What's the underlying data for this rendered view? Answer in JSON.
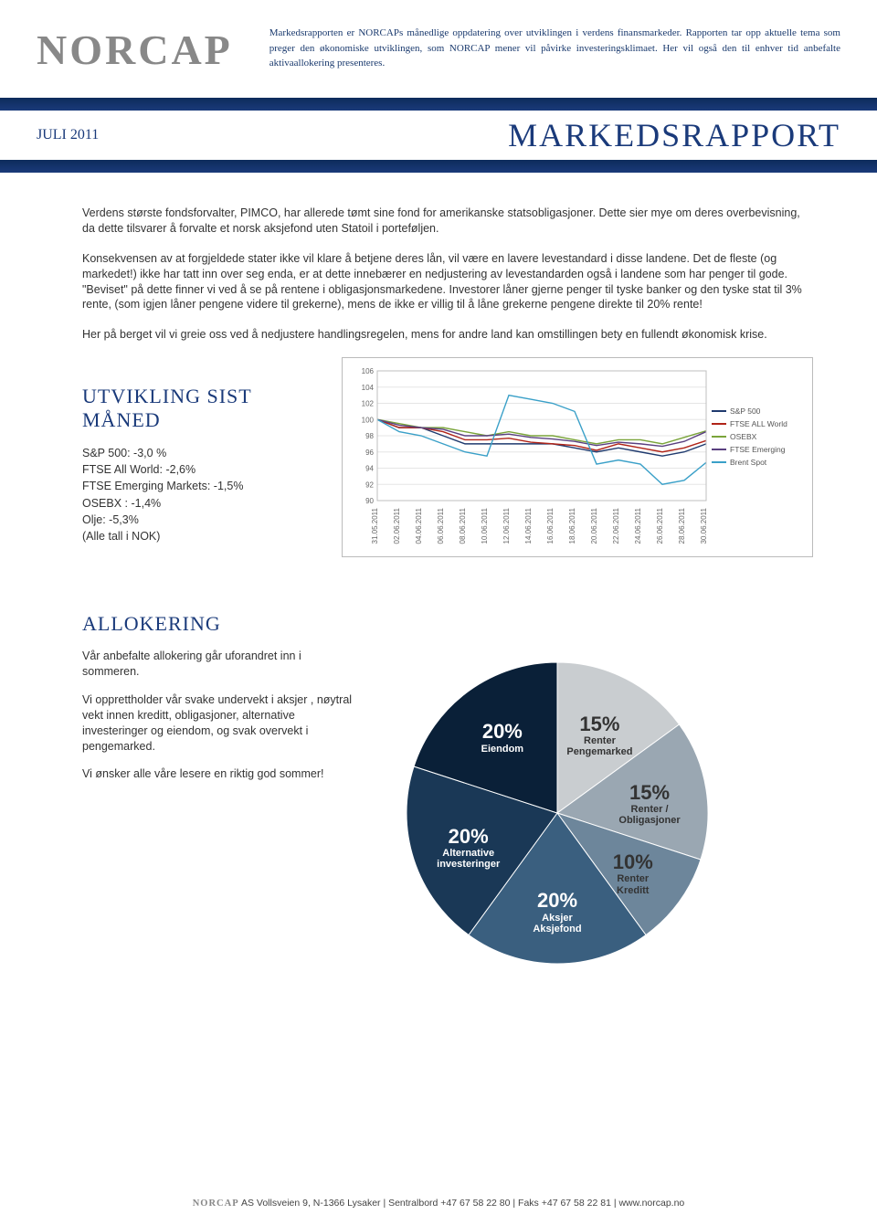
{
  "header": {
    "logo": "NORCAP",
    "description": "Markedsrapporten er NORCAPs månedlige oppdatering over utviklingen i verdens finansmarkeder. Rapporten tar opp aktuelle tema som preger den økonomiske utviklingen, som NORCAP mener vil påvirke investeringsklimaet. Her vil også den til enhver tid anbefalte aktivaallokering presenteres."
  },
  "title_row": {
    "date": "JULI 2011",
    "title": "MARKEDSRAPPORT"
  },
  "body": {
    "p1": "Verdens største fondsforvalter, PIMCO, har allerede tømt sine fond for amerikanske statsobligasjoner. Dette sier mye om deres overbevisning, da dette tilsvarer å forvalte et norsk aksjefond uten Statoil i porteføljen.",
    "p2": "Konsekvensen av at forgjeldede stater ikke vil klare å betjene deres lån, vil være en lavere levestandard i disse landene. Det de fleste (og markedet!) ikke har tatt inn over seg enda, er at dette innebærer en nedjustering av levestandarden også i landene som har penger til gode. \"Beviset\" på dette finner vi ved å se på rentene i obligasjonsmarkedene. Investorer låner gjerne penger til tyske banker og den tyske stat til 3% rente, (som igjen låner pengene videre til grekerne), mens de ikke er villig til å låne grekerne pengene direkte til 20% rente!",
    "p3": "Her på berget vil vi greie oss ved å nedjustere handlingsregelen, mens for andre land kan omstillingen bety en fullendt økonomisk krise."
  },
  "utvikling": {
    "title": "UTVIKLING SIST MÅNED",
    "stats": [
      "S&P 500: -3,0 %",
      "FTSE All World: -2,6%",
      "FTSE Emerging Markets: -1,5%",
      "OSEBX : -1,4%",
      "Olje: -5,3%",
      "(Alle tall i NOK)"
    ]
  },
  "line_chart": {
    "type": "line",
    "ylim": [
      90,
      106
    ],
    "yticks": [
      90,
      92,
      94,
      96,
      98,
      100,
      102,
      104,
      106
    ],
    "xticks": [
      "31.05.2011",
      "02.06.2011",
      "04.06.2011",
      "06.06.2011",
      "08.06.2011",
      "10.06.2011",
      "12.06.2011",
      "14.06.2011",
      "16.06.2011",
      "18.06.2011",
      "20.06.2011",
      "22.06.2011",
      "24.06.2011",
      "26.06.2011",
      "28.06.2011",
      "30.06.2011"
    ],
    "grid_color": "#e5e5e5",
    "border_color": "#bfbfbf",
    "background_color": "#ffffff",
    "label_fontsize": 8,
    "series": [
      {
        "name": "S&P 500",
        "color": "#1f3a6e",
        "values": [
          100,
          99,
          99,
          98,
          97,
          97,
          97,
          97,
          97,
          96.5,
          96,
          96.5,
          96,
          95.5,
          96,
          97
        ]
      },
      {
        "name": "FTSE ALL World",
        "color": "#b02418",
        "values": [
          100,
          99,
          99,
          98.5,
          97.5,
          97.5,
          97.7,
          97.2,
          97,
          96.8,
          96.2,
          97,
          96.5,
          96,
          96.5,
          97.4
        ]
      },
      {
        "name": "OSEBX",
        "color": "#7aa43a",
        "values": [
          100,
          99.5,
          99,
          99,
          98.5,
          98,
          98.5,
          98,
          98,
          97.5,
          97,
          97.5,
          97.5,
          97,
          97.8,
          98.6
        ]
      },
      {
        "name": "FTSE Emerging",
        "color": "#5a4080",
        "values": [
          100,
          99.3,
          99,
          98.8,
          98,
          98,
          98.2,
          97.8,
          97.6,
          97.3,
          96.8,
          97.2,
          97,
          96.7,
          97.3,
          98.5
        ]
      },
      {
        "name": "Brent Spot",
        "color": "#3aa0c8",
        "values": [
          100,
          98.5,
          98,
          97,
          96,
          95.5,
          103,
          102.5,
          102,
          101,
          94.5,
          95,
          94.5,
          92,
          92.5,
          94.7
        ]
      }
    ]
  },
  "allokering": {
    "title": "ALLOKERING",
    "p1": "Vår anbefalte allokering går uforandret inn i sommeren.",
    "p2": "Vi opprettholder vår svake undervekt i aksjer , nøytral vekt innen kreditt, obligasjoner, alternative investeringer og eiendom, og svak overvekt i pengemarked.",
    "p3": "Vi ønsker alle våre lesere en riktig god sommer!"
  },
  "pie_chart": {
    "type": "pie",
    "background_color": "#ffffff",
    "slices": [
      {
        "label_pct": "15%",
        "label1": "Renter",
        "label2": "Pengemarked",
        "value": 15,
        "color": "#c9cdd0",
        "text_color": "dark"
      },
      {
        "label_pct": "15%",
        "label1": "Renter / Obligasjoner",
        "label2": "",
        "value": 15,
        "color": "#9aa7b2",
        "text_color": "dark"
      },
      {
        "label_pct": "10%",
        "label1": "Renter",
        "label2": "Kreditt",
        "value": 10,
        "color": "#6d869b",
        "text_color": "dark"
      },
      {
        "label_pct": "20%",
        "label1": "Aksjer",
        "label2": "Aksjefond",
        "value": 20,
        "color": "#3a5f7f",
        "text_color": "light"
      },
      {
        "label_pct": "20%",
        "label1": "Alternative",
        "label2": "investeringer",
        "value": 20,
        "color": "#1a3856",
        "text_color": "light"
      },
      {
        "label_pct": "20%",
        "label1": "Eiendom",
        "label2": "",
        "value": 20,
        "color": "#0a2038",
        "text_color": "light"
      }
    ]
  },
  "footer": {
    "company": "NORCAP",
    "suffix": "AS",
    "text": "Vollsveien 9, N-1366 Lysaker | Sentralbord +47 67 58 22 80 | Faks +47 67 58 22 81 | www.norcap.no"
  }
}
